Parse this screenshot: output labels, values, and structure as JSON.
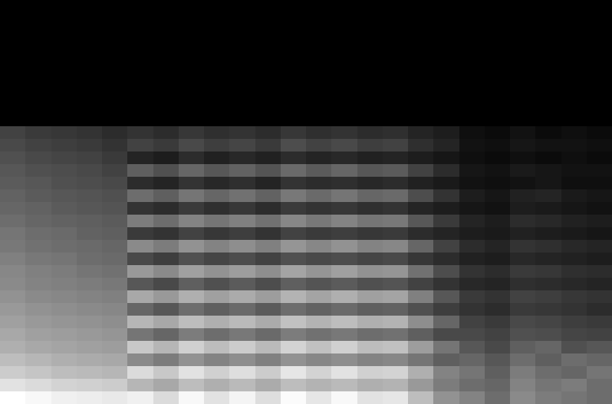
{
  "chart_data": {
    "type": "heatmap",
    "tick_labels": false,
    "grid": false,
    "z": [
      [
        0,
        0,
        0,
        0,
        0,
        0,
        0,
        0,
        0,
        0,
        0,
        0,
        0,
        0,
        0,
        0,
        0,
        0,
        0,
        0,
        0,
        0,
        0,
        0
      ],
      [
        0,
        0,
        0,
        0,
        0,
        0,
        0,
        0,
        0,
        0,
        0,
        0,
        0,
        0,
        0,
        0,
        0,
        0,
        0,
        0,
        0,
        0,
        0,
        0
      ],
      [
        0,
        0,
        0,
        0,
        0,
        0,
        0,
        0,
        0,
        0,
        0,
        0,
        0,
        0,
        0,
        0,
        0,
        0,
        0,
        0,
        0,
        0,
        0,
        0
      ],
      [
        0,
        0,
        0,
        0,
        0,
        0,
        0,
        0,
        0,
        0,
        0,
        0,
        0,
        0,
        0,
        0,
        0,
        0,
        0,
        0,
        0,
        0,
        0,
        0
      ],
      [
        0,
        0,
        0,
        0,
        0,
        0,
        0,
        0,
        0,
        0,
        0,
        0,
        0,
        0,
        0,
        0,
        0,
        0,
        0,
        0,
        0,
        0,
        0,
        0
      ],
      [
        0,
        0,
        0,
        0,
        0,
        0,
        0,
        0,
        0,
        0,
        0,
        0,
        0,
        0,
        0,
        0,
        0,
        0,
        0,
        0,
        0,
        0,
        0,
        0
      ],
      [
        0,
        0,
        0,
        0,
        0,
        0,
        0,
        0,
        0,
        0,
        0,
        0,
        0,
        0,
        0,
        0,
        0,
        0,
        0,
        0,
        0,
        0,
        0,
        0
      ],
      [
        0,
        0,
        0,
        0,
        0,
        0,
        0,
        0,
        0,
        0,
        0,
        0,
        0,
        0,
        0,
        0,
        0,
        0,
        0,
        0,
        0,
        0,
        0,
        0
      ],
      [
        0,
        0,
        0,
        0,
        0,
        0,
        0,
        0,
        0,
        0,
        0,
        0,
        0,
        0,
        0,
        0,
        0,
        0,
        0,
        0,
        0,
        0,
        0,
        0
      ],
      [
        0,
        0,
        0,
        0,
        0,
        0,
        0,
        0,
        0,
        0,
        0,
        0,
        0,
        0,
        0,
        0,
        0,
        0,
        0,
        0,
        0,
        0,
        0,
        0
      ],
      [
        18,
        16,
        15,
        14,
        12,
        14,
        12,
        15,
        13,
        14,
        12,
        15,
        13,
        14,
        12,
        13,
        10,
        8,
        4,
        3,
        5,
        3,
        4,
        3
      ],
      [
        20,
        18,
        17,
        16,
        14,
        18,
        16,
        20,
        17,
        19,
        16,
        21,
        18,
        20,
        17,
        18,
        13,
        10,
        5,
        4,
        6,
        5,
        5,
        4
      ],
      [
        22,
        20,
        19,
        18,
        16,
        10,
        8,
        12,
        9,
        11,
        9,
        12,
        10,
        11,
        9,
        10,
        8,
        6,
        4,
        3,
        4,
        3,
        4,
        3
      ],
      [
        24,
        22,
        21,
        20,
        18,
        26,
        22,
        28,
        24,
        27,
        23,
        29,
        25,
        28,
        24,
        25,
        18,
        12,
        6,
        5,
        7,
        6,
        5,
        5
      ],
      [
        25,
        24,
        22,
        21,
        20,
        12,
        10,
        14,
        11,
        13,
        10,
        14,
        12,
        13,
        11,
        12,
        9,
        7,
        5,
        4,
        5,
        6,
        4,
        4
      ],
      [
        27,
        25,
        24,
        23,
        22,
        30,
        26,
        32,
        28,
        31,
        27,
        33,
        29,
        32,
        28,
        29,
        21,
        14,
        8,
        6,
        9,
        10,
        7,
        6
      ],
      [
        28,
        27,
        25,
        24,
        23,
        14,
        12,
        16,
        13,
        15,
        12,
        16,
        14,
        15,
        13,
        14,
        10,
        8,
        6,
        5,
        8,
        7,
        6,
        5
      ],
      [
        30,
        28,
        27,
        26,
        25,
        34,
        30,
        36,
        32,
        35,
        31,
        37,
        33,
        36,
        32,
        33,
        24,
        16,
        10,
        8,
        12,
        11,
        9,
        8
      ],
      [
        32,
        30,
        29,
        27,
        26,
        16,
        14,
        18,
        15,
        17,
        14,
        18,
        16,
        17,
        15,
        16,
        12,
        10,
        8,
        7,
        9,
        8,
        7,
        6
      ],
      [
        33,
        31,
        30,
        29,
        28,
        38,
        34,
        40,
        36,
        39,
        35,
        41,
        37,
        40,
        36,
        37,
        28,
        18,
        12,
        10,
        14,
        13,
        11,
        10
      ],
      [
        35,
        33,
        32,
        30,
        29,
        20,
        17,
        22,
        19,
        21,
        18,
        22,
        20,
        21,
        19,
        20,
        15,
        12,
        9,
        8,
        11,
        10,
        9,
        8
      ],
      [
        37,
        35,
        34,
        32,
        31,
        42,
        38,
        44,
        40,
        43,
        39,
        45,
        41,
        44,
        40,
        41,
        31,
        21,
        14,
        12,
        16,
        15,
        13,
        12
      ],
      [
        38,
        36,
        35,
        34,
        33,
        24,
        20,
        26,
        22,
        25,
        21,
        26,
        23,
        25,
        22,
        23,
        18,
        14,
        11,
        10,
        13,
        12,
        11,
        10
      ],
      [
        40,
        38,
        37,
        36,
        35,
        46,
        42,
        48,
        44,
        47,
        43,
        49,
        45,
        48,
        44,
        45,
        35,
        24,
        16,
        14,
        18,
        17,
        15,
        14
      ],
      [
        42,
        40,
        39,
        38,
        37,
        28,
        24,
        30,
        26,
        29,
        25,
        30,
        27,
        29,
        26,
        27,
        22,
        17,
        14,
        12,
        16,
        15,
        14,
        12
      ],
      [
        44,
        42,
        41,
        40,
        39,
        50,
        46,
        52,
        48,
        51,
        47,
        53,
        49,
        52,
        48,
        49,
        39,
        28,
        18,
        16,
        20,
        19,
        17,
        16
      ],
      [
        46,
        44,
        43,
        42,
        41,
        32,
        28,
        34,
        30,
        33,
        29,
        34,
        31,
        33,
        30,
        31,
        26,
        20,
        20,
        18,
        22,
        21,
        19,
        18
      ],
      [
        48,
        46,
        45,
        44,
        43,
        55,
        50,
        57,
        52,
        56,
        51,
        58,
        53,
        57,
        52,
        53,
        43,
        32,
        24,
        20,
        26,
        28,
        22,
        24
      ],
      [
        52,
        50,
        48,
        47,
        46,
        38,
        34,
        40,
        36,
        39,
        35,
        40,
        37,
        39,
        36,
        37,
        32,
        26,
        28,
        24,
        30,
        26,
        30,
        28
      ],
      [
        56,
        54,
        52,
        51,
        50,
        60,
        55,
        62,
        57,
        61,
        56,
        63,
        58,
        62,
        57,
        58,
        48,
        36,
        32,
        26,
        34,
        30,
        28,
        32
      ],
      [
        62,
        60,
        58,
        57,
        56,
        50,
        46,
        52,
        48,
        51,
        47,
        52,
        49,
        51,
        48,
        49,
        42,
        34,
        30,
        28,
        36,
        32,
        34,
        30
      ],
      [
        70,
        68,
        66,
        65,
        64,
        66,
        60,
        68,
        62,
        67,
        61,
        69,
        63,
        68,
        62,
        63,
        52,
        40,
        36,
        30,
        38,
        34,
        32,
        30
      ]
    ]
  }
}
